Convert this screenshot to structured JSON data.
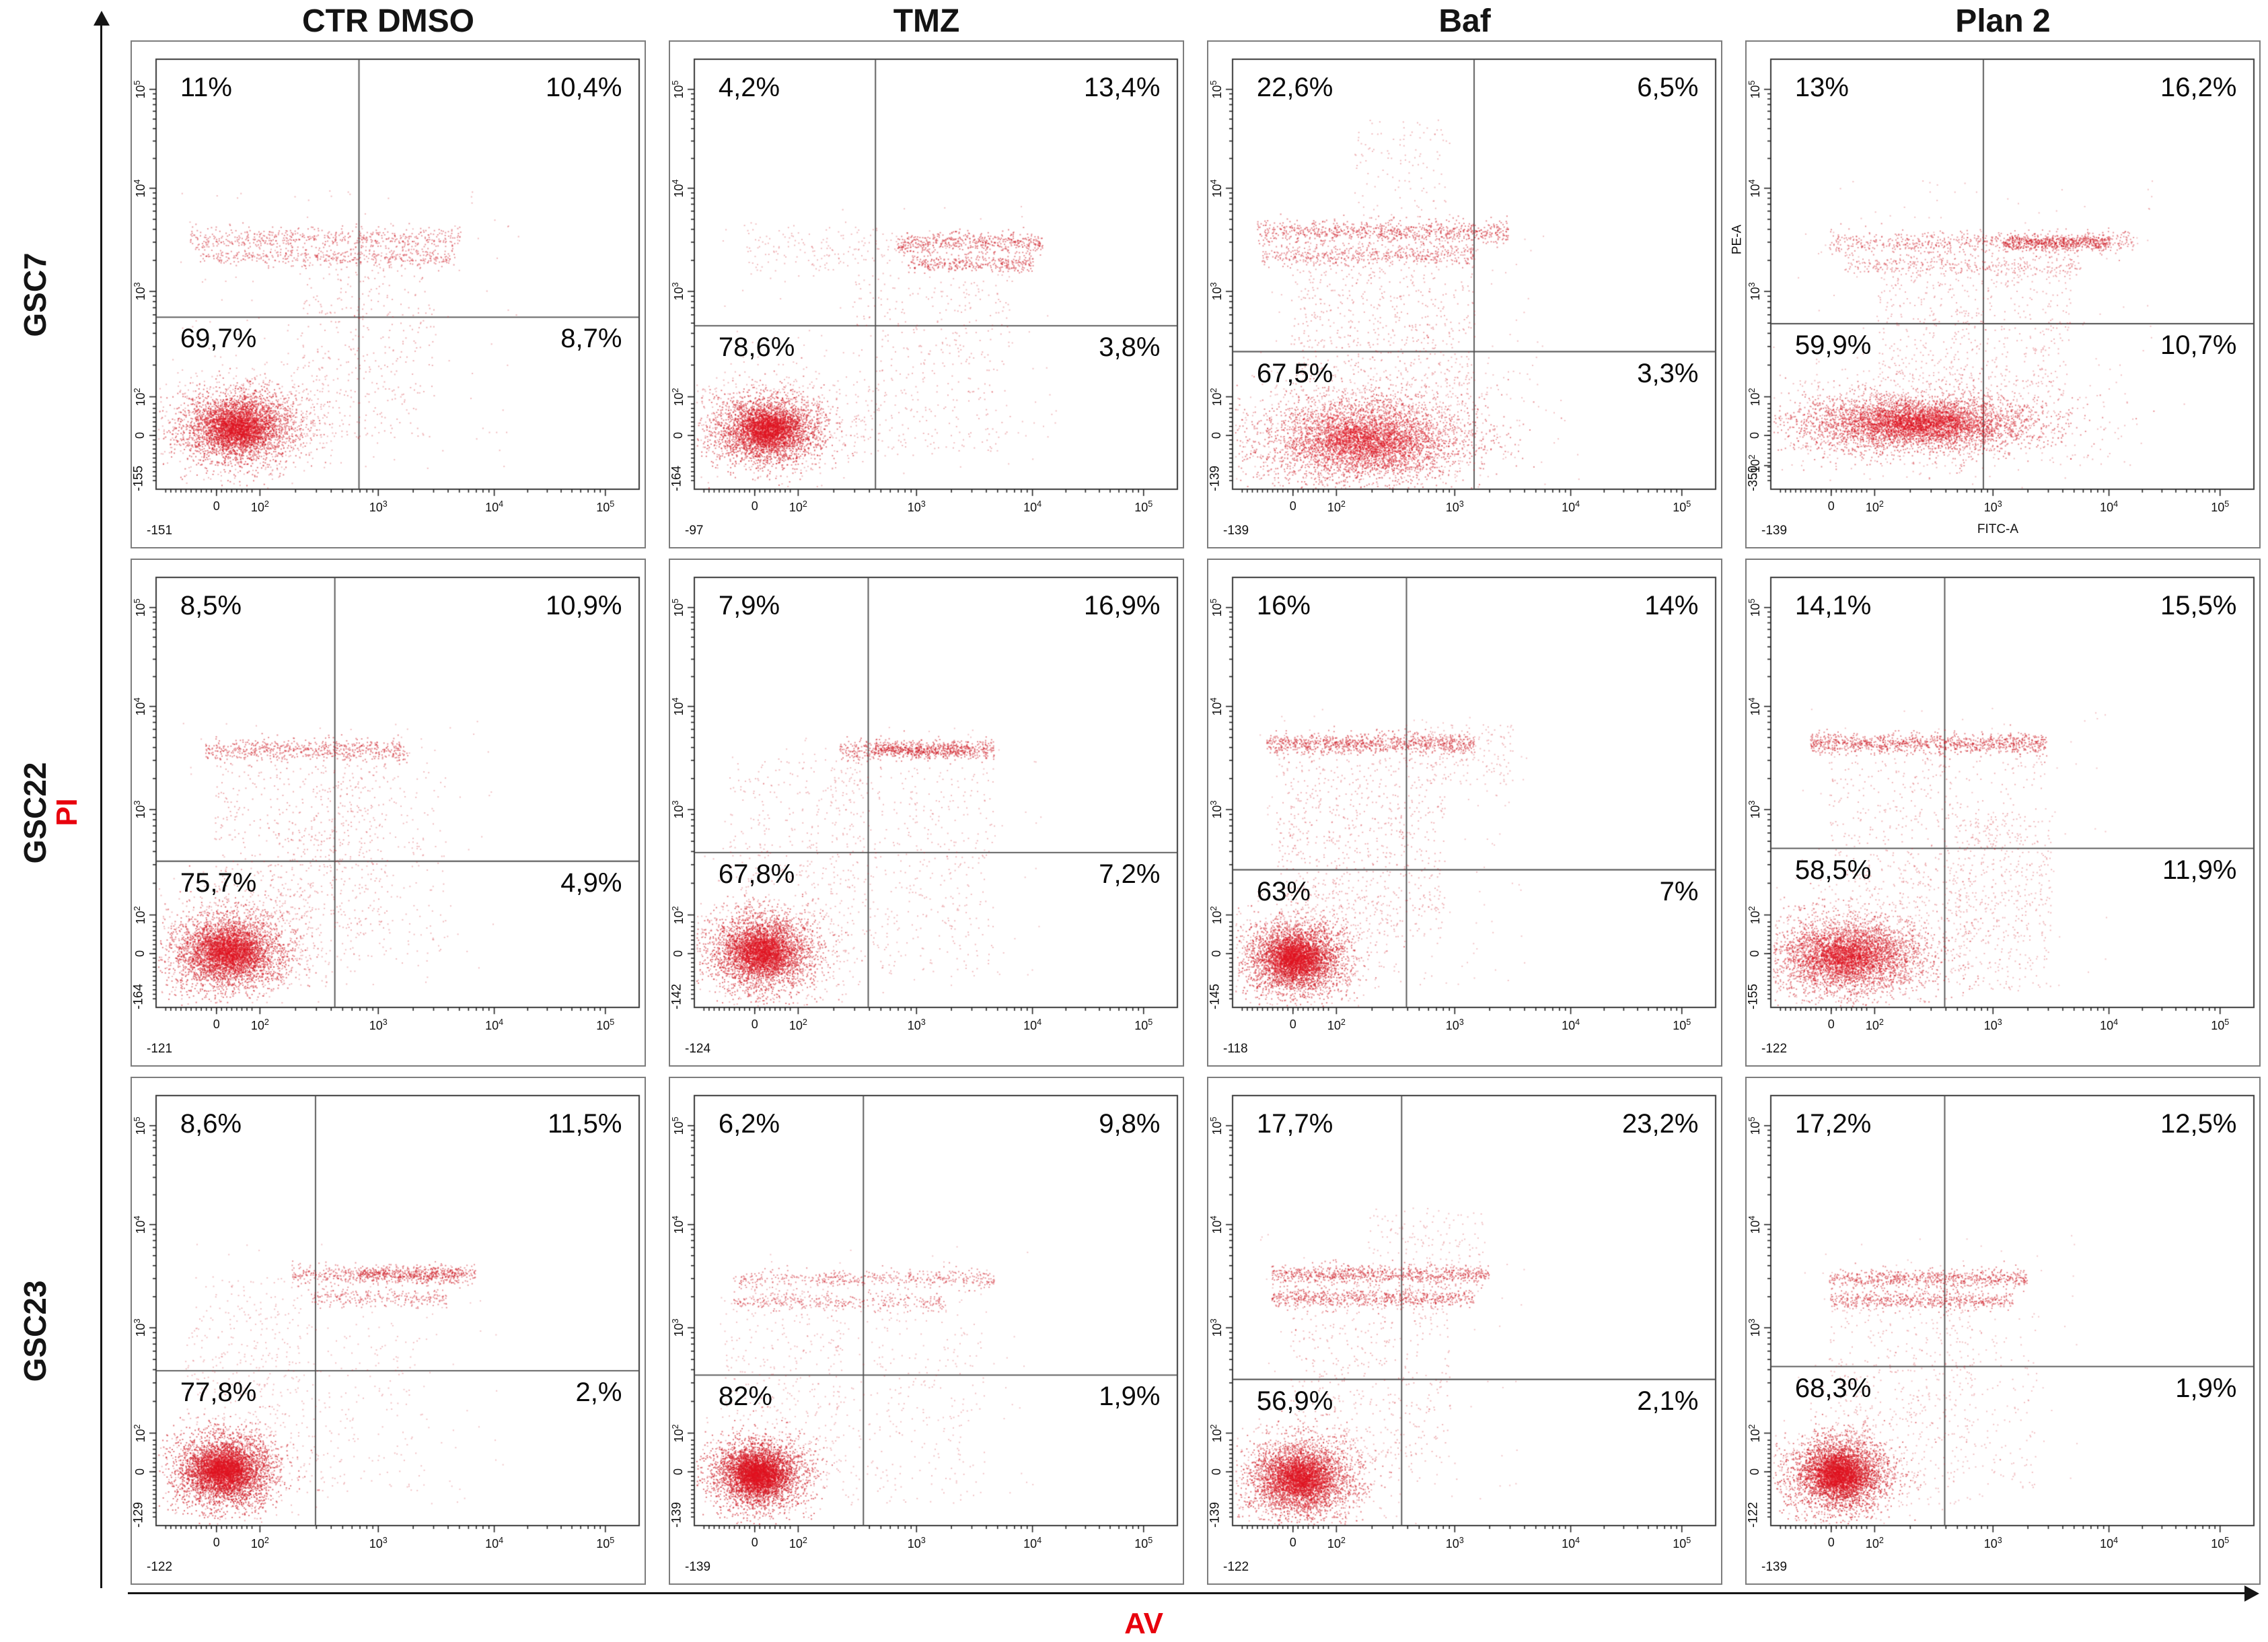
{
  "figure": {
    "x_axis_label": "AV",
    "y_axis_label": "PI",
    "axis_label_color": "#e8000d",
    "dot_color": "#cd1923",
    "columns": [
      "CTR DMSO",
      "TMZ",
      "Baf",
      "Plan 2"
    ],
    "rows": [
      "GSC7",
      "GSC22",
      "GSC23"
    ]
  },
  "chart_data": [
    {
      "type": "scatter",
      "row": "GSC7",
      "column": "CTR DMSO",
      "quadrants": {
        "upper_left": "11%",
        "upper_right": "10,4%",
        "lower_left": "69,7%",
        "lower_right": "8,7%"
      },
      "x_ticks": [
        "-151",
        "0",
        "10^2",
        "10^3",
        "10^4",
        "10^5"
      ],
      "y_ticks": [
        "-155",
        "0",
        "10^2",
        "10^3",
        "10^4",
        "10^5"
      ],
      "gate": {
        "x": 0.42,
        "y": 0.6
      },
      "populations": [
        [
          "g",
          0.17,
          0.145,
          0.06,
          0.042,
          2800,
          0.55
        ],
        [
          "g",
          0.18,
          0.15,
          0.105,
          0.07,
          700,
          0.3
        ],
        [
          "b",
          0.585,
          0.07,
          0.63,
          0.013,
          550,
          0.45
        ],
        [
          "b",
          0.54,
          0.09,
          0.62,
          0.011,
          430,
          0.45
        ],
        [
          "u",
          0.3,
          0.58,
          0.12,
          0.56,
          380,
          0.35
        ],
        [
          "u",
          0.05,
          0.75,
          0.05,
          0.7,
          130,
          0.3
        ]
      ]
    },
    {
      "type": "scatter",
      "row": "GSC7",
      "column": "TMZ",
      "quadrants": {
        "upper_left": "4,2%",
        "upper_right": "13,4%",
        "lower_left": "78,6%",
        "lower_right": "3,8%"
      },
      "x_ticks": [
        "-97",
        "0",
        "10^2",
        "10^3",
        "10^4",
        "10^5"
      ],
      "y_ticks": [
        "-164",
        "0",
        "10^2",
        "10^3",
        "10^4",
        "10^5"
      ],
      "gate": {
        "x": 0.375,
        "y": 0.62
      },
      "populations": [
        [
          "g",
          0.15,
          0.14,
          0.055,
          0.04,
          2800,
          0.55
        ],
        [
          "g",
          0.16,
          0.15,
          0.1,
          0.065,
          600,
          0.3
        ],
        [
          "b",
          0.575,
          0.42,
          0.72,
          0.012,
          520,
          0.5
        ],
        [
          "b",
          0.525,
          0.44,
          0.7,
          0.01,
          340,
          0.5
        ],
        [
          "b",
          0.56,
          0.1,
          0.42,
          0.03,
          160,
          0.3
        ],
        [
          "u",
          0.33,
          0.66,
          0.08,
          0.5,
          360,
          0.32
        ],
        [
          "u",
          0.05,
          0.75,
          0.05,
          0.68,
          120,
          0.28
        ]
      ]
    },
    {
      "type": "scatter",
      "row": "GSC7",
      "column": "Baf",
      "quadrants": {
        "upper_left": "22,6%",
        "upper_right": "6,5%",
        "lower_left": "67,5%",
        "lower_right": "3,3%"
      },
      "x_ticks": [
        "-139",
        "0",
        "10^2",
        "10^3",
        "10^4",
        "10^5"
      ],
      "y_ticks": [
        "-139",
        "0",
        "10^2",
        "10^3",
        "10^4",
        "10^5"
      ],
      "gate": {
        "x": 0.5,
        "y": 0.68
      },
      "populations": [
        [
          "g",
          0.27,
          0.115,
          0.115,
          0.055,
          3200,
          0.5
        ],
        [
          "g",
          0.28,
          0.13,
          0.16,
          0.085,
          700,
          0.28
        ],
        [
          "b",
          0.6,
          0.05,
          0.57,
          0.013,
          800,
          0.5
        ],
        [
          "b",
          0.545,
          0.06,
          0.5,
          0.012,
          480,
          0.45
        ],
        [
          "u",
          0.12,
          0.5,
          0.18,
          0.58,
          700,
          0.35
        ],
        [
          "u",
          0.25,
          0.46,
          0.6,
          0.86,
          130,
          0.3
        ],
        [
          "u",
          0.05,
          0.65,
          0.05,
          0.6,
          110,
          0.28
        ]
      ]
    },
    {
      "type": "scatter",
      "row": "GSC7",
      "column": "Plan 2",
      "y_axis_name": "PE-A",
      "x_axis_name": "FITC-A",
      "quadrants": {
        "upper_left": "13%",
        "upper_right": "16,2%",
        "lower_left": "59,9%",
        "lower_right": "10,7%"
      },
      "x_ticks": [
        "-139",
        "0",
        "10^2",
        "10^3",
        "10^4",
        "10^5"
      ],
      "y_ticks": [
        "-350",
        "-10^2",
        "0",
        "10^2",
        "10^3",
        "10^4",
        "10^5"
      ],
      "gate": {
        "x": 0.44,
        "y": 0.615
      },
      "populations": [
        [
          "g",
          0.3,
          0.155,
          0.13,
          0.035,
          3400,
          0.5
        ],
        [
          "g",
          0.3,
          0.16,
          0.18,
          0.06,
          800,
          0.3
        ],
        [
          "b",
          0.575,
          0.12,
          0.75,
          0.014,
          650,
          0.45
        ],
        [
          "b",
          0.575,
          0.48,
          0.7,
          0.009,
          520,
          0.55
        ],
        [
          "b",
          0.52,
          0.15,
          0.64,
          0.012,
          340,
          0.4
        ],
        [
          "u",
          0.22,
          0.62,
          0.24,
          0.52,
          520,
          0.33
        ],
        [
          "u",
          0.05,
          0.8,
          0.05,
          0.72,
          150,
          0.28
        ]
      ]
    },
    {
      "type": "scatter",
      "row": "GSC22",
      "column": "CTR DMSO",
      "quadrants": {
        "upper_left": "8,5%",
        "upper_right": "10,9%",
        "lower_left": "75,7%",
        "lower_right": "4,9%"
      },
      "x_ticks": [
        "-121",
        "0",
        "10^2",
        "10^3",
        "10^4",
        "10^5"
      ],
      "y_ticks": [
        "-164",
        "0",
        "10^2",
        "10^3",
        "10^4",
        "10^5"
      ],
      "gate": {
        "x": 0.37,
        "y": 0.66
      },
      "populations": [
        [
          "g",
          0.15,
          0.13,
          0.06,
          0.045,
          3000,
          0.55
        ],
        [
          "g",
          0.16,
          0.14,
          0.1,
          0.07,
          650,
          0.3
        ],
        [
          "b",
          0.6,
          0.1,
          0.52,
          0.013,
          620,
          0.5
        ],
        [
          "u",
          0.12,
          0.48,
          0.18,
          0.57,
          560,
          0.35
        ],
        [
          "u",
          0.28,
          0.6,
          0.1,
          0.55,
          260,
          0.3
        ],
        [
          "u",
          0.05,
          0.7,
          0.05,
          0.68,
          110,
          0.28
        ]
      ]
    },
    {
      "type": "scatter",
      "row": "GSC22",
      "column": "TMZ",
      "quadrants": {
        "upper_left": "7,9%",
        "upper_right": "16,9%",
        "lower_left": "67,8%",
        "lower_right": "7,2%"
      },
      "x_ticks": [
        "-124",
        "0",
        "10^2",
        "10^3",
        "10^4",
        "10^5"
      ],
      "y_ticks": [
        "-142",
        "0",
        "10^2",
        "10^3",
        "10^4",
        "10^5"
      ],
      "gate": {
        "x": 0.36,
        "y": 0.64
      },
      "populations": [
        [
          "g",
          0.14,
          0.13,
          0.055,
          0.045,
          2900,
          0.55
        ],
        [
          "g",
          0.15,
          0.14,
          0.095,
          0.07,
          600,
          0.3
        ],
        [
          "b",
          0.6,
          0.3,
          0.62,
          0.012,
          520,
          0.5
        ],
        [
          "b",
          0.6,
          0.37,
          0.57,
          0.008,
          330,
          0.55
        ],
        [
          "u",
          0.07,
          0.35,
          0.28,
          0.58,
          260,
          0.3
        ],
        [
          "u",
          0.28,
          0.62,
          0.08,
          0.56,
          420,
          0.3
        ],
        [
          "u",
          0.05,
          0.72,
          0.05,
          0.66,
          120,
          0.26
        ]
      ]
    },
    {
      "type": "scatter",
      "row": "GSC22",
      "column": "Baf",
      "quadrants": {
        "upper_left": "16%",
        "upper_right": "14%",
        "lower_left": "63%",
        "lower_right": "7%"
      },
      "x_ticks": [
        "-118",
        "0",
        "10^2",
        "10^3",
        "10^4",
        "10^5"
      ],
      "y_ticks": [
        "-145",
        "0",
        "10^2",
        "10^3",
        "10^4",
        "10^5"
      ],
      "gate": {
        "x": 0.36,
        "y": 0.68
      },
      "populations": [
        [
          "g",
          0.13,
          0.115,
          0.052,
          0.042,
          3000,
          0.55
        ],
        [
          "g",
          0.14,
          0.125,
          0.09,
          0.065,
          620,
          0.3
        ],
        [
          "b",
          0.615,
          0.07,
          0.5,
          0.012,
          950,
          0.5
        ],
        [
          "u",
          0.09,
          0.44,
          0.16,
          0.59,
          820,
          0.33
        ],
        [
          "u",
          0.4,
          0.58,
          0.52,
          0.66,
          150,
          0.3
        ],
        [
          "u",
          0.05,
          0.62,
          0.05,
          0.7,
          120,
          0.26
        ]
      ]
    },
    {
      "type": "scatter",
      "row": "GSC22",
      "column": "Plan 2",
      "quadrants": {
        "upper_left": "14,1%",
        "upper_right": "15,5%",
        "lower_left": "58,5%",
        "lower_right": "11,9%"
      },
      "x_ticks": [
        "-122",
        "0",
        "10^2",
        "10^3",
        "10^4",
        "10^5"
      ],
      "y_ticks": [
        "-155",
        "0",
        "10^2",
        "10^3",
        "10^4",
        "10^5"
      ],
      "gate": {
        "x": 0.36,
        "y": 0.63
      },
      "populations": [
        [
          "g",
          0.16,
          0.12,
          0.085,
          0.048,
          3000,
          0.5
        ],
        [
          "g",
          0.17,
          0.13,
          0.13,
          0.07,
          700,
          0.28
        ],
        [
          "b",
          0.615,
          0.08,
          0.57,
          0.012,
          1050,
          0.5
        ],
        [
          "u",
          0.12,
          0.56,
          0.16,
          0.58,
          620,
          0.32
        ],
        [
          "u",
          0.36,
          0.58,
          0.04,
          0.45,
          380,
          0.3
        ],
        [
          "u",
          0.05,
          0.7,
          0.05,
          0.7,
          120,
          0.26
        ]
      ]
    },
    {
      "type": "scatter",
      "row": "GSC23",
      "column": "CTR DMSO",
      "quadrants": {
        "upper_left": "8,6%",
        "upper_right": "11,5%",
        "lower_left": "77,8%",
        "lower_right": "2,%"
      },
      "x_ticks": [
        "-122",
        "0",
        "10^2",
        "10^3",
        "10^4",
        "10^5"
      ],
      "y_ticks": [
        "-129",
        "0",
        "10^2",
        "10^3",
        "10^4",
        "10^5"
      ],
      "gate": {
        "x": 0.33,
        "y": 0.64
      },
      "populations": [
        [
          "g",
          0.14,
          0.13,
          0.05,
          0.042,
          3200,
          0.6
        ],
        [
          "g",
          0.15,
          0.14,
          0.085,
          0.06,
          500,
          0.3
        ],
        [
          "b",
          0.585,
          0.28,
          0.66,
          0.012,
          520,
          0.45
        ],
        [
          "b",
          0.585,
          0.42,
          0.63,
          0.008,
          320,
          0.55
        ],
        [
          "b",
          0.53,
          0.32,
          0.6,
          0.01,
          260,
          0.45
        ],
        [
          "u",
          0.06,
          0.3,
          0.3,
          0.58,
          200,
          0.28
        ],
        [
          "u",
          0.18,
          0.55,
          0.08,
          0.5,
          260,
          0.28
        ],
        [
          "u",
          0.05,
          0.72,
          0.05,
          0.66,
          100,
          0.25
        ]
      ]
    },
    {
      "type": "scatter",
      "row": "GSC23",
      "column": "TMZ",
      "quadrants": {
        "upper_left": "6,2%",
        "upper_right": "9,8%",
        "lower_left": "82%",
        "lower_right": "1,9%"
      },
      "x_ticks": [
        "-139",
        "0",
        "10^2",
        "10^3",
        "10^4",
        "10^5"
      ],
      "y_ticks": [
        "-139",
        "0",
        "10^2",
        "10^3",
        "10^4",
        "10^5"
      ],
      "gate": {
        "x": 0.35,
        "y": 0.65
      },
      "populations": [
        [
          "g",
          0.13,
          0.12,
          0.046,
          0.04,
          3200,
          0.6
        ],
        [
          "g",
          0.14,
          0.13,
          0.08,
          0.06,
          500,
          0.3
        ],
        [
          "b",
          0.575,
          0.08,
          0.62,
          0.011,
          470,
          0.45
        ],
        [
          "b",
          0.52,
          0.08,
          0.52,
          0.01,
          340,
          0.45
        ],
        [
          "u",
          0.06,
          0.3,
          0.25,
          0.56,
          240,
          0.28
        ],
        [
          "u",
          0.28,
          0.6,
          0.05,
          0.5,
          260,
          0.28
        ],
        [
          "u",
          0.05,
          0.7,
          0.05,
          0.66,
          100,
          0.25
        ]
      ]
    },
    {
      "type": "scatter",
      "row": "GSC23",
      "column": "Baf",
      "quadrants": {
        "upper_left": "17,7%",
        "upper_right": "23,2%",
        "lower_left": "56,9%",
        "lower_right": "2,1%"
      },
      "x_ticks": [
        "-122",
        "0",
        "10^2",
        "10^3",
        "10^4",
        "10^5"
      ],
      "y_ticks": [
        "-139",
        "0",
        "10^2",
        "10^3",
        "10^4",
        "10^5"
      ],
      "gate": {
        "x": 0.35,
        "y": 0.66
      },
      "populations": [
        [
          "g",
          0.14,
          0.11,
          0.055,
          0.045,
          3000,
          0.55
        ],
        [
          "g",
          0.15,
          0.12,
          0.09,
          0.065,
          600,
          0.3
        ],
        [
          "b",
          0.585,
          0.08,
          0.53,
          0.011,
          820,
          0.5
        ],
        [
          "b",
          0.53,
          0.08,
          0.5,
          0.01,
          650,
          0.5
        ],
        [
          "u",
          0.12,
          0.45,
          0.16,
          0.56,
          460,
          0.32
        ],
        [
          "u",
          0.28,
          0.52,
          0.6,
          0.74,
          120,
          0.28
        ],
        [
          "u",
          0.05,
          0.62,
          0.05,
          0.68,
          110,
          0.26
        ]
      ]
    },
    {
      "type": "scatter",
      "row": "GSC23",
      "column": "Plan 2",
      "quadrants": {
        "upper_left": "17,2%",
        "upper_right": "12,5%",
        "lower_left": "68,3%",
        "lower_right": "1,9%"
      },
      "x_ticks": [
        "-139",
        "0",
        "10^2",
        "10^3",
        "10^4",
        "10^5"
      ],
      "y_ticks": [
        "-122",
        "0",
        "10^2",
        "10^3",
        "10^4",
        "10^5"
      ],
      "gate": {
        "x": 0.36,
        "y": 0.63
      },
      "populations": [
        [
          "g",
          0.14,
          0.12,
          0.05,
          0.042,
          3100,
          0.58
        ],
        [
          "g",
          0.15,
          0.13,
          0.085,
          0.06,
          550,
          0.3
        ],
        [
          "b",
          0.575,
          0.12,
          0.53,
          0.011,
          680,
          0.5
        ],
        [
          "b",
          0.525,
          0.12,
          0.5,
          0.01,
          520,
          0.5
        ],
        [
          "u",
          0.12,
          0.42,
          0.2,
          0.55,
          360,
          0.3
        ],
        [
          "u",
          0.28,
          0.55,
          0.05,
          0.5,
          220,
          0.28
        ],
        [
          "u",
          0.05,
          0.64,
          0.05,
          0.68,
          100,
          0.25
        ]
      ]
    }
  ]
}
